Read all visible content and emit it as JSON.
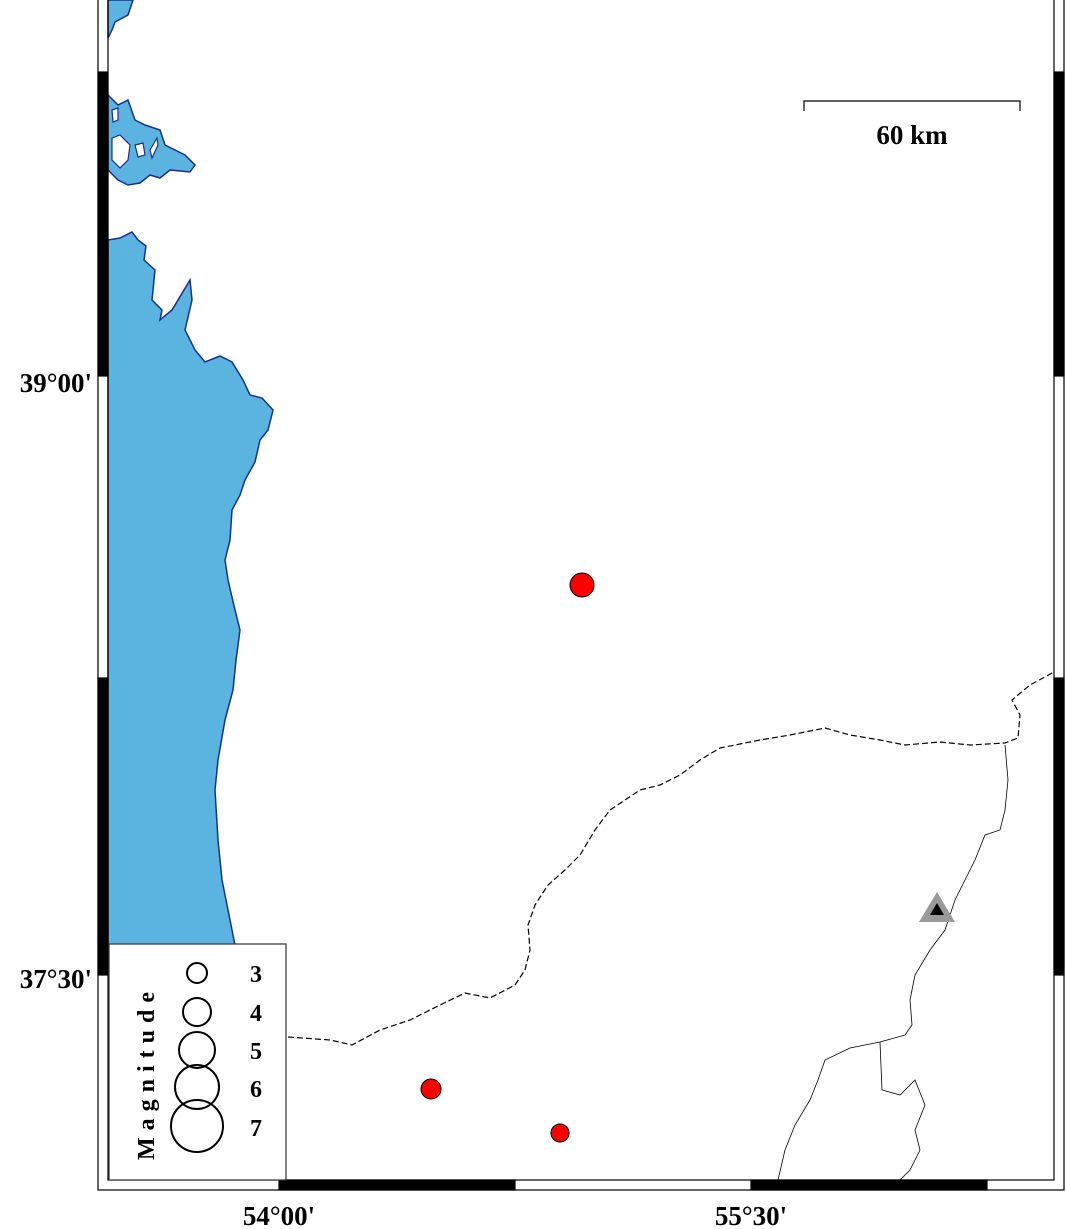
{
  "map": {
    "colors": {
      "water": "#5bb3e0",
      "coast": "#1a2f8a",
      "event": "#ff0000",
      "station": "#999999"
    },
    "lat_labels": [
      "39°00'",
      "37°30'"
    ],
    "lon_labels": [
      "54°00'",
      "55°30'"
    ],
    "scale_bar": {
      "label": "60 km"
    },
    "legend": {
      "title": "Magnitude",
      "magnitudes": [
        "3",
        "4",
        "5",
        "6",
        "7"
      ]
    },
    "events": [
      {
        "description": "earthquake",
        "size": "medium"
      },
      {
        "description": "earthquake",
        "size": "small"
      },
      {
        "description": "earthquake",
        "size": "small"
      }
    ],
    "stations": [
      {
        "symbol": "triangle-icon"
      }
    ]
  }
}
